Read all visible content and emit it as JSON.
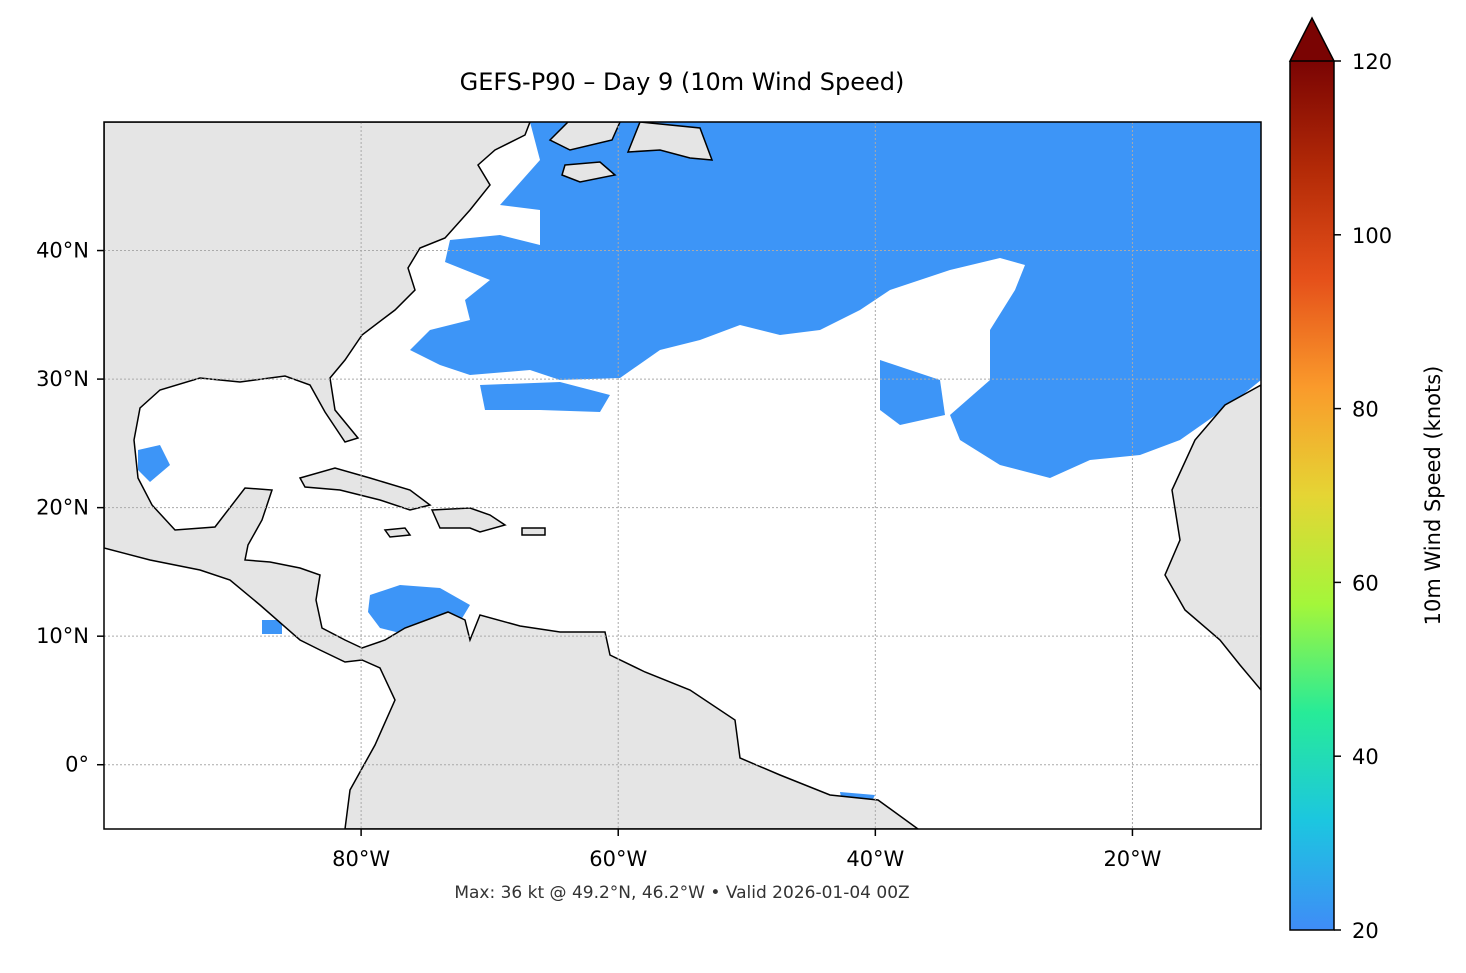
{
  "title": "GEFS-P90 – Day 9 (10m Wind Speed)",
  "footer": "Max: 36 kt @ 49.2°N, 46.2°W • Valid 2026-01-04 00Z",
  "map": {
    "lonlim": [
      -100,
      -10
    ],
    "latlim": [
      -5,
      50
    ],
    "grid": true,
    "lonticks": [
      {
        "value": -80,
        "label": "80°W"
      },
      {
        "value": -60,
        "label": "60°W"
      },
      {
        "value": -40,
        "label": "40°W"
      },
      {
        "value": -20,
        "label": "20°W"
      }
    ],
    "latticks": [
      {
        "value": 0,
        "label": "0°"
      },
      {
        "value": 10,
        "label": "10°N"
      },
      {
        "value": 20,
        "label": "20°N"
      },
      {
        "value": 30,
        "label": "30°N"
      },
      {
        "value": 40,
        "label": "40°N"
      }
    ]
  },
  "colorbar": {
    "label": "10m Wind Speed (knots)",
    "lim": [
      20,
      120
    ],
    "ticks": [
      20,
      40,
      60,
      80,
      100,
      120
    ],
    "colors": [
      "#3f8cf7",
      "#1cc6e0",
      "#27eb98",
      "#a4f63a",
      "#e5d534",
      "#fa9a2b",
      "#e5501a",
      "#b32a07",
      "#7a0403"
    ],
    "extend": "max"
  }
}
